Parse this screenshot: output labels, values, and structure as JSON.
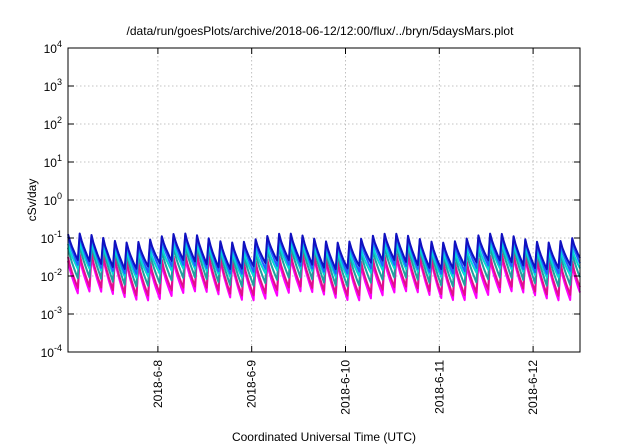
{
  "chart_data": {
    "type": "line",
    "title": "/data/run/goesPlots/archive/2018-06-12/12:00/flux/../bryn/5daysMars.plot",
    "xlabel": "Coordinated Universal Time (UTC)",
    "ylabel": "cSv/day",
    "yscale": "log",
    "ylim": [
      0.0001,
      10000
    ],
    "xlim": [
      "2018-06-07 01:00",
      "2018-06-12 12:00"
    ],
    "grid": true,
    "legend": "none",
    "y_ticks": [
      {
        "base": "10",
        "exp": "-4"
      },
      {
        "base": "10",
        "exp": "-3"
      },
      {
        "base": "10",
        "exp": "-2"
      },
      {
        "base": "10",
        "exp": "-1"
      },
      {
        "base": "10",
        "exp": "0"
      },
      {
        "base": "10",
        "exp": "1"
      },
      {
        "base": "10",
        "exp": "2"
      },
      {
        "base": "10",
        "exp": "3"
      },
      {
        "base": "10",
        "exp": "4"
      }
    ],
    "x_ticks": [
      "2018-6-8",
      "2018-6-9",
      "2018-6-10",
      "2018-6-11",
      "2018-6-12"
    ],
    "x_tick_dates": [
      "2018-06-08",
      "2018-06-09",
      "2018-06-10",
      "2018-06-11",
      "2018-06-12"
    ],
    "sawtooth_period_hours": 3,
    "series": [
      {
        "color": "#ff00ff",
        "peak": 0.025,
        "trough": 0.003
      },
      {
        "color": "#e0108a",
        "peak": 0.03,
        "trough": 0.004
      },
      {
        "color": "#20a0a0",
        "peak": 0.05,
        "trough": 0.007
      },
      {
        "color": "#00d8d8",
        "peak": 0.06,
        "trough": 0.012
      },
      {
        "color": "#2060ff",
        "peak": 0.09,
        "trough": 0.015
      },
      {
        "color": "#1010c0",
        "peak": 0.1,
        "trough": 0.02
      }
    ]
  }
}
